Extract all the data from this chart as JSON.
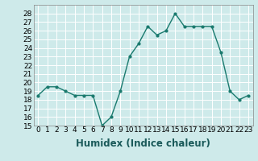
{
  "x": [
    0,
    1,
    2,
    3,
    4,
    5,
    6,
    7,
    8,
    9,
    10,
    11,
    12,
    13,
    14,
    15,
    16,
    17,
    18,
    19,
    20,
    21,
    22,
    23
  ],
  "y": [
    18.5,
    19.5,
    19.5,
    19.0,
    18.5,
    18.5,
    18.5,
    15.0,
    16.0,
    19.0,
    23.0,
    24.5,
    26.5,
    25.5,
    26.0,
    28.0,
    26.5,
    26.5,
    26.5,
    26.5,
    23.5,
    19.0,
    18.0,
    18.5
  ],
  "xlabel": "Humidex (Indice chaleur)",
  "ylim": [
    15,
    29
  ],
  "xlim": [
    -0.5,
    23.5
  ],
  "yticks": [
    15,
    16,
    17,
    18,
    19,
    20,
    21,
    22,
    23,
    24,
    25,
    26,
    27,
    28
  ],
  "xtick_labels": [
    "0",
    "1",
    "2",
    "3",
    "4",
    "5",
    "6",
    "7",
    "8",
    "9",
    "10",
    "11",
    "12",
    "13",
    "14",
    "15",
    "16",
    "17",
    "18",
    "19",
    "20",
    "21",
    "22",
    "23"
  ],
  "line_color": "#1a7a6e",
  "marker": "o",
  "marker_size": 2.0,
  "line_width": 1.0,
  "bg_color": "#ceeaea",
  "grid_color": "#ffffff",
  "tick_fontsize": 6.5,
  "xlabel_fontsize": 8.5
}
